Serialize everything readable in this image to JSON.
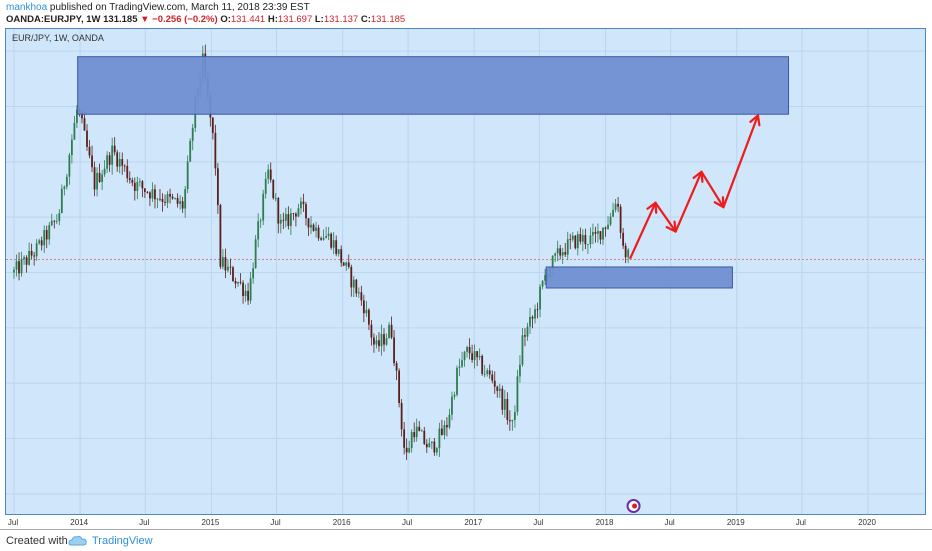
{
  "header": {
    "author": "mankhoa",
    "published": "published on TradingView.com, March 11, 2018 23:39 EST",
    "symbol_full": "OANDA:EURJPY, 1W",
    "price": "131.185",
    "change": "−0.256 (−0.2%)",
    "o_label": "O:",
    "o_value": "131.441",
    "h_label": "H:",
    "h_value": "131.697",
    "l_label": "L:",
    "l_value": "131.137",
    "c_label": "C:",
    "c_value": "131.185"
  },
  "plot": {
    "symbol": "EUR/JPY, 1W, OANDA"
  },
  "footer": {
    "created": "Created with",
    "brand": "TradingView"
  },
  "colors": {
    "plot_bg": "#cfe6fb",
    "candle_up": "#2e7d4f",
    "candle_down": "#5a1f1a",
    "zone_fill": "#6f8fd2",
    "zone_stroke": "#3f58a8",
    "forecast_arrow": "#ee1c1c",
    "current_price_line": "#e06060"
  },
  "chart_data": {
    "type": "candlestick",
    "timeframe": "1W",
    "x_ticks": [
      "Jul",
      "2014",
      "Jul",
      "2015",
      "Jul",
      "2016",
      "Jul",
      "2017",
      "Jul",
      "2018",
      "Jul",
      "2019",
      "Jul",
      "2020"
    ],
    "x_tick_dates": [
      "2013-07-01",
      "2014-01-01",
      "2014-07-01",
      "2015-01-01",
      "2015-07-01",
      "2016-01-01",
      "2016-07-01",
      "2017-01-01",
      "2017-07-01",
      "2018-01-01",
      "2018-07-01",
      "2019-01-01",
      "2019-07-01",
      "2020-01-01"
    ],
    "ylim": [
      108,
      152
    ],
    "price_path": [
      [
        "2013-07-01",
        130
      ],
      [
        "2013-09-01",
        132
      ],
      [
        "2013-11-01",
        135
      ],
      [
        "2013-12-25",
        145
      ],
      [
        "2014-02-10",
        138
      ],
      [
        "2014-04-01",
        141
      ],
      [
        "2014-06-01",
        138
      ],
      [
        "2014-08-01",
        137
      ],
      [
        "2014-10-15",
        136
      ],
      [
        "2014-11-20",
        146
      ],
      [
        "2014-12-08",
        149
      ],
      [
        "2015-01-10",
        141
      ],
      [
        "2015-01-26",
        131
      ],
      [
        "2015-04-15",
        128
      ],
      [
        "2015-05-01",
        132
      ],
      [
        "2015-06-08",
        139
      ],
      [
        "2015-07-15",
        134
      ],
      [
        "2015-09-01",
        136
      ],
      [
        "2015-10-15",
        134
      ],
      [
        "2015-12-01",
        133
      ],
      [
        "2016-01-15",
        130
      ],
      [
        "2016-03-01",
        127
      ],
      [
        "2016-04-01",
        123
      ],
      [
        "2016-05-15",
        125
      ],
      [
        "2016-06-24",
        113
      ],
      [
        "2016-07-15",
        116
      ],
      [
        "2016-09-01",
        114
      ],
      [
        "2016-10-15",
        116
      ],
      [
        "2016-11-15",
        121
      ],
      [
        "2016-12-15",
        123
      ],
      [
        "2017-02-01",
        121
      ],
      [
        "2017-03-01",
        120
      ],
      [
        "2017-04-17",
        116
      ],
      [
        "2017-05-15",
        124
      ],
      [
        "2017-06-15",
        126
      ],
      [
        "2017-07-20",
        130
      ],
      [
        "2017-09-01",
        132
      ],
      [
        "2017-10-15",
        133
      ],
      [
        "2017-12-01",
        133
      ],
      [
        "2018-01-15",
        135
      ],
      [
        "2018-02-01",
        137
      ],
      [
        "2018-02-20",
        132
      ],
      [
        "2018-03-11",
        131.185
      ]
    ],
    "zones": [
      {
        "name": "supply",
        "x_start": "2013-12-25",
        "x_end": "2019-05-25",
        "y_low": 144.3,
        "y_high": 149.5
      },
      {
        "name": "demand",
        "x_start": "2017-07-20",
        "x_end": "2018-12-20",
        "y_low": 128.6,
        "y_high": 130.5
      }
    ],
    "forecast_path": [
      [
        "2018-03-11",
        131.3
      ],
      [
        "2018-05-20",
        136.3
      ],
      [
        "2018-07-15",
        133.7
      ],
      [
        "2018-09-25",
        139.1
      ],
      [
        "2018-11-25",
        135.9
      ],
      [
        "2019-03-01",
        144.2
      ]
    ],
    "current_price": 131.185
  }
}
